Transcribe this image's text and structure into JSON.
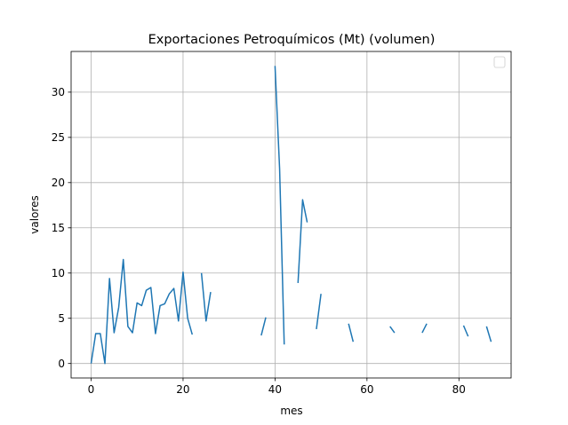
{
  "chart_data": {
    "type": "line",
    "title": "Exportaciones Petroquímicos (Mt) (volumen)",
    "xlabel": "mes",
    "ylabel": "valores",
    "xlim": [
      -4.35,
      91.35
    ],
    "ylim": [
      -1.6,
      34.5
    ],
    "xticks": [
      0,
      20,
      40,
      60,
      80
    ],
    "yticks": [
      0,
      5,
      10,
      15,
      20,
      25,
      30
    ],
    "grid": true,
    "legend": "top-right",
    "color": "#1f77b4",
    "x": [
      0,
      1,
      2,
      3,
      4,
      5,
      6,
      7,
      8,
      9,
      10,
      11,
      12,
      13,
      14,
      15,
      16,
      17,
      18,
      19,
      20,
      21,
      22,
      23,
      24,
      25,
      26,
      27,
      28,
      29,
      30,
      31,
      32,
      33,
      34,
      35,
      36,
      37,
      38,
      39,
      40,
      41,
      42,
      43,
      44,
      45,
      46,
      47,
      48,
      49,
      50,
      51,
      52,
      53,
      54,
      55,
      56,
      57,
      58,
      59,
      60,
      61,
      62,
      63,
      64,
      65,
      66,
      67,
      68,
      69,
      70,
      71,
      72,
      73,
      74,
      75,
      76,
      77,
      78,
      79,
      80,
      81,
      82,
      83,
      84,
      85,
      86,
      87
    ],
    "values": [
      0.0,
      3.3,
      3.3,
      0.0,
      9.4,
      3.4,
      6.2,
      11.5,
      4.1,
      3.4,
      6.7,
      6.4,
      8.1,
      8.4,
      3.3,
      6.4,
      6.6,
      7.7,
      8.3,
      4.7,
      10.1,
      5.0,
      3.2,
      null,
      10.0,
      4.7,
      7.9,
      null,
      null,
      null,
      null,
      null,
      null,
      null,
      null,
      null,
      null,
      3.1,
      5.1,
      null,
      32.9,
      21.5,
      2.1,
      null,
      null,
      8.9,
      18.1,
      15.6,
      null,
      3.8,
      7.7,
      null,
      null,
      null,
      null,
      null,
      4.4,
      2.4,
      null,
      null,
      null,
      null,
      null,
      null,
      null,
      4.1,
      3.4,
      null,
      null,
      null,
      null,
      null,
      3.4,
      4.4,
      null,
      null,
      null,
      null,
      null,
      null,
      null,
      4.2,
      3.0,
      null,
      null,
      null,
      4.1,
      2.4
    ]
  }
}
